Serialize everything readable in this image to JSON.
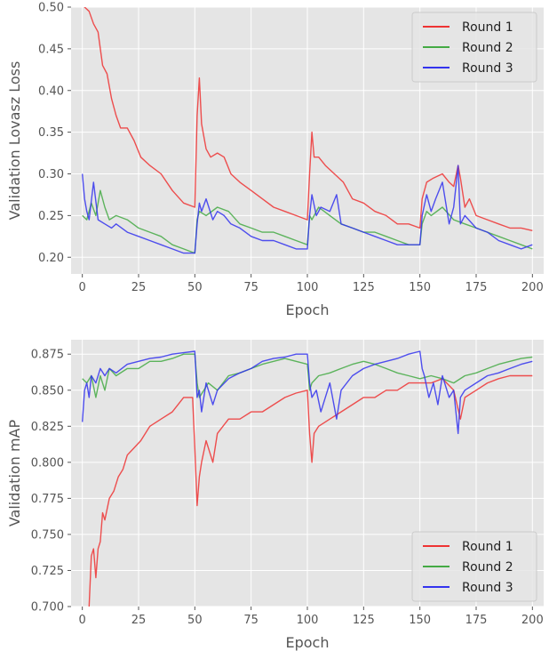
{
  "chart_data": [
    {
      "type": "line",
      "title": "",
      "xlabel": "Epoch",
      "ylabel": "Validation Lovasz Loss",
      "xlim": [
        -5,
        205
      ],
      "ylim": [
        0.18,
        0.5
      ],
      "xticks": [
        0,
        25,
        50,
        75,
        100,
        125,
        150,
        175,
        200
      ],
      "yticks": [
        0.2,
        0.25,
        0.3,
        0.35,
        0.4,
        0.45,
        0.5
      ],
      "ytick_labels": [
        "0.20",
        "0.25",
        "0.30",
        "0.35",
        "0.40",
        "0.45",
        "0.50"
      ],
      "grid": true,
      "legend_position": "top-right",
      "series": [
        {
          "name": "Round 1",
          "color": "#ee3333",
          "x": [
            0,
            1,
            3,
            5,
            7,
            9,
            11,
            13,
            15,
            17,
            20,
            23,
            26,
            30,
            35,
            40,
            45,
            50,
            51,
            52,
            53,
            55,
            57,
            60,
            63,
            66,
            70,
            75,
            80,
            85,
            90,
            95,
            100,
            101,
            102,
            103,
            105,
            108,
            112,
            116,
            120,
            125,
            130,
            135,
            140,
            145,
            150,
            151,
            153,
            156,
            160,
            163,
            165,
            167,
            168,
            170,
            172,
            175,
            180,
            185,
            190,
            195,
            200
          ],
          "values": [
            0.51,
            0.5,
            0.495,
            0.48,
            0.47,
            0.43,
            0.42,
            0.39,
            0.37,
            0.355,
            0.355,
            0.34,
            0.32,
            0.31,
            0.3,
            0.28,
            0.265,
            0.26,
            0.37,
            0.415,
            0.36,
            0.33,
            0.32,
            0.325,
            0.32,
            0.3,
            0.29,
            0.28,
            0.27,
            0.26,
            0.255,
            0.25,
            0.245,
            0.3,
            0.35,
            0.32,
            0.32,
            0.31,
            0.3,
            0.29,
            0.27,
            0.265,
            0.255,
            0.25,
            0.24,
            0.24,
            0.235,
            0.27,
            0.29,
            0.295,
            0.3,
            0.29,
            0.285,
            0.31,
            0.295,
            0.26,
            0.27,
            0.25,
            0.245,
            0.24,
            0.235,
            0.235,
            0.232
          ]
        },
        {
          "name": "Round 2",
          "color": "#44aa44",
          "x": [
            0,
            2,
            4,
            6,
            8,
            10,
            12,
            15,
            20,
            25,
            30,
            35,
            40,
            45,
            50,
            51,
            52,
            55,
            60,
            65,
            70,
            75,
            80,
            85,
            90,
            95,
            100,
            101,
            102,
            105,
            110,
            115,
            120,
            125,
            130,
            135,
            140,
            145,
            150,
            151,
            153,
            155,
            160,
            165,
            170,
            175,
            180,
            185,
            190,
            195,
            200
          ],
          "values": [
            0.25,
            0.245,
            0.265,
            0.25,
            0.28,
            0.26,
            0.245,
            0.25,
            0.245,
            0.235,
            0.23,
            0.225,
            0.215,
            0.21,
            0.205,
            0.245,
            0.255,
            0.25,
            0.26,
            0.255,
            0.24,
            0.235,
            0.23,
            0.23,
            0.225,
            0.22,
            0.215,
            0.25,
            0.245,
            0.26,
            0.25,
            0.24,
            0.235,
            0.23,
            0.23,
            0.225,
            0.22,
            0.215,
            0.215,
            0.24,
            0.255,
            0.25,
            0.26,
            0.245,
            0.24,
            0.235,
            0.23,
            0.225,
            0.22,
            0.215,
            0.21
          ]
        },
        {
          "name": "Round 3",
          "color": "#3333ee",
          "x": [
            0,
            1,
            2,
            3,
            5,
            7,
            10,
            13,
            15,
            20,
            25,
            30,
            35,
            40,
            45,
            50,
            51,
            52,
            53,
            55,
            58,
            60,
            63,
            66,
            70,
            75,
            80,
            85,
            90,
            95,
            100,
            101,
            102,
            104,
            106,
            110,
            113,
            115,
            120,
            125,
            130,
            135,
            140,
            145,
            150,
            151,
            153,
            155,
            157,
            160,
            163,
            165,
            167,
            168,
            170,
            175,
            180,
            185,
            190,
            195,
            200
          ],
          "values": [
            0.3,
            0.27,
            0.255,
            0.245,
            0.29,
            0.245,
            0.24,
            0.235,
            0.24,
            0.23,
            0.225,
            0.22,
            0.215,
            0.21,
            0.205,
            0.205,
            0.24,
            0.265,
            0.255,
            0.27,
            0.245,
            0.255,
            0.25,
            0.24,
            0.235,
            0.225,
            0.22,
            0.22,
            0.215,
            0.21,
            0.21,
            0.25,
            0.275,
            0.25,
            0.26,
            0.255,
            0.275,
            0.24,
            0.235,
            0.23,
            0.225,
            0.22,
            0.215,
            0.215,
            0.215,
            0.25,
            0.275,
            0.255,
            0.27,
            0.29,
            0.24,
            0.26,
            0.31,
            0.24,
            0.25,
            0.235,
            0.23,
            0.22,
            0.215,
            0.21,
            0.215
          ]
        }
      ]
    },
    {
      "type": "line",
      "title": "",
      "xlabel": "Epoch",
      "ylabel": "Validation mAP",
      "xlim": [
        -5,
        205
      ],
      "ylim": [
        0.7,
        0.885
      ],
      "xticks": [
        0,
        25,
        50,
        75,
        100,
        125,
        150,
        175,
        200
      ],
      "yticks": [
        0.7,
        0.725,
        0.75,
        0.775,
        0.8,
        0.825,
        0.85,
        0.875
      ],
      "ytick_labels": [
        "0.700",
        "0.725",
        "0.750",
        "0.775",
        "0.800",
        "0.825",
        "0.850",
        "0.875"
      ],
      "grid": true,
      "legend_position": "bottom-right",
      "series": [
        {
          "name": "Round 1",
          "color": "#ee3333",
          "x": [
            3,
            4,
            5,
            6,
            7,
            8,
            9,
            10,
            12,
            14,
            16,
            18,
            20,
            23,
            26,
            30,
            35,
            40,
            45,
            49,
            50,
            51,
            52,
            53,
            55,
            58,
            60,
            65,
            70,
            75,
            80,
            85,
            90,
            95,
            100,
            101,
            102,
            103,
            105,
            110,
            115,
            120,
            125,
            130,
            135,
            140,
            145,
            150,
            155,
            160,
            165,
            168,
            170,
            175,
            180,
            185,
            190,
            195,
            200
          ],
          "values": [
            0.7,
            0.735,
            0.74,
            0.72,
            0.74,
            0.745,
            0.765,
            0.76,
            0.775,
            0.78,
            0.79,
            0.795,
            0.805,
            0.81,
            0.815,
            0.825,
            0.83,
            0.835,
            0.845,
            0.845,
            0.81,
            0.77,
            0.79,
            0.8,
            0.815,
            0.8,
            0.82,
            0.83,
            0.83,
            0.835,
            0.835,
            0.84,
            0.845,
            0.848,
            0.85,
            0.82,
            0.8,
            0.82,
            0.825,
            0.83,
            0.835,
            0.84,
            0.845,
            0.845,
            0.85,
            0.85,
            0.855,
            0.855,
            0.855,
            0.858,
            0.85,
            0.83,
            0.845,
            0.85,
            0.855,
            0.858,
            0.86,
            0.86,
            0.86
          ]
        },
        {
          "name": "Round 2",
          "color": "#44aa44",
          "x": [
            0,
            2,
            4,
            6,
            8,
            10,
            12,
            15,
            20,
            25,
            30,
            35,
            40,
            45,
            50,
            51,
            52,
            54,
            56,
            60,
            65,
            70,
            75,
            80,
            85,
            90,
            95,
            100,
            101,
            102,
            105,
            110,
            115,
            120,
            125,
            130,
            135,
            140,
            145,
            150,
            155,
            160,
            165,
            170,
            175,
            180,
            185,
            190,
            195,
            200
          ],
          "values": [
            0.858,
            0.855,
            0.86,
            0.845,
            0.86,
            0.85,
            0.865,
            0.86,
            0.865,
            0.865,
            0.87,
            0.87,
            0.872,
            0.875,
            0.875,
            0.855,
            0.845,
            0.85,
            0.855,
            0.85,
            0.86,
            0.862,
            0.865,
            0.868,
            0.87,
            0.872,
            0.87,
            0.868,
            0.85,
            0.855,
            0.86,
            0.862,
            0.865,
            0.868,
            0.87,
            0.868,
            0.865,
            0.862,
            0.86,
            0.858,
            0.86,
            0.858,
            0.855,
            0.86,
            0.862,
            0.865,
            0.868,
            0.87,
            0.872,
            0.873
          ]
        },
        {
          "name": "Round 3",
          "color": "#3333ee",
          "x": [
            0,
            1,
            2,
            3,
            4,
            6,
            8,
            10,
            12,
            15,
            20,
            25,
            30,
            35,
            40,
            45,
            50,
            51,
            52,
            53,
            55,
            58,
            60,
            65,
            70,
            75,
            80,
            85,
            90,
            95,
            100,
            101,
            102,
            104,
            106,
            110,
            113,
            115,
            120,
            125,
            130,
            135,
            140,
            145,
            150,
            151,
            152,
            154,
            156,
            158,
            160,
            163,
            165,
            167,
            168,
            170,
            175,
            180,
            185,
            190,
            195,
            200
          ],
          "values": [
            0.828,
            0.85,
            0.855,
            0.845,
            0.86,
            0.855,
            0.865,
            0.86,
            0.865,
            0.862,
            0.868,
            0.87,
            0.872,
            0.873,
            0.875,
            0.876,
            0.877,
            0.845,
            0.85,
            0.835,
            0.855,
            0.84,
            0.85,
            0.858,
            0.862,
            0.865,
            0.87,
            0.872,
            0.873,
            0.875,
            0.875,
            0.855,
            0.845,
            0.85,
            0.835,
            0.855,
            0.83,
            0.85,
            0.86,
            0.865,
            0.868,
            0.87,
            0.872,
            0.875,
            0.877,
            0.865,
            0.86,
            0.845,
            0.855,
            0.84,
            0.86,
            0.845,
            0.85,
            0.82,
            0.845,
            0.85,
            0.855,
            0.86,
            0.862,
            0.865,
            0.868,
            0.87
          ]
        }
      ]
    }
  ]
}
